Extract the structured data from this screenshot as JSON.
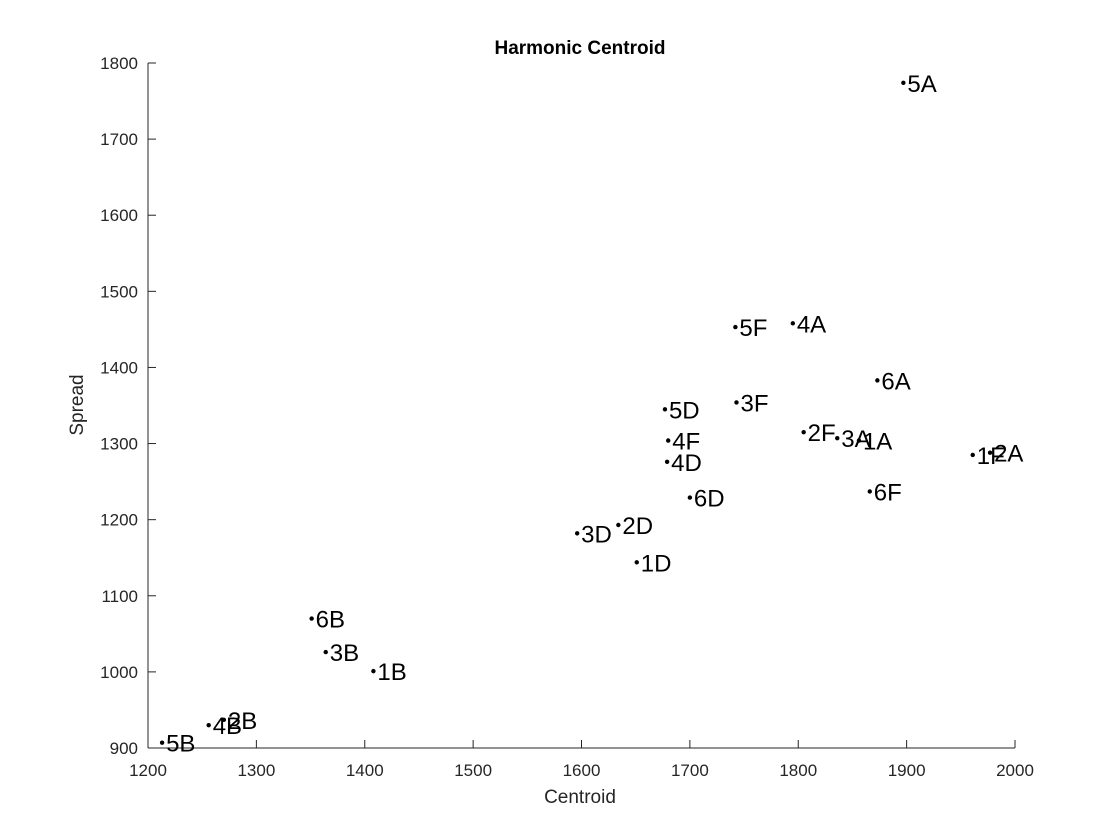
{
  "chart_data": {
    "type": "scatter",
    "title": "Harmonic Centroid",
    "xlabel": "Centroid",
    "ylabel": "Spread",
    "xlim": [
      1200,
      2000
    ],
    "ylim": [
      900,
      1800
    ],
    "xticks": [
      1200,
      1300,
      1400,
      1500,
      1600,
      1700,
      1800,
      1900,
      2000
    ],
    "yticks": [
      900,
      1000,
      1100,
      1200,
      1300,
      1400,
      1500,
      1600,
      1700,
      1800
    ],
    "xtick_labels": [
      "1200",
      "1300",
      "1400",
      "1500",
      "1600",
      "1700",
      "1800",
      "1900",
      "2000"
    ],
    "ytick_labels": [
      "900",
      "1000",
      "1100",
      "1200",
      "1300",
      "1400",
      "1500",
      "1600",
      "1700",
      "1800"
    ],
    "grid": false,
    "legend": "none",
    "points": [
      {
        "label": "5A",
        "x": 1897,
        "y": 1774
      },
      {
        "label": "4A",
        "x": 1795,
        "y": 1458
      },
      {
        "label": "5F",
        "x": 1742,
        "y": 1453
      },
      {
        "label": "6A",
        "x": 1873,
        "y": 1383
      },
      {
        "label": "3F",
        "x": 1743,
        "y": 1354
      },
      {
        "label": "5D",
        "x": 1677,
        "y": 1345
      },
      {
        "label": "2F",
        "x": 1805,
        "y": 1315
      },
      {
        "label": "3A",
        "x": 1836,
        "y": 1307
      },
      {
        "label": "1A",
        "x": 1856,
        "y": 1304
      },
      {
        "label": "4F",
        "x": 1680,
        "y": 1304
      },
      {
        "label": "1F",
        "x": 1961,
        "y": 1285
      },
      {
        "label": "2A",
        "x": 1977,
        "y": 1288
      },
      {
        "label": "4D",
        "x": 1679,
        "y": 1276
      },
      {
        "label": "6F",
        "x": 1866,
        "y": 1237
      },
      {
        "label": "6D",
        "x": 1700,
        "y": 1229
      },
      {
        "label": "2D",
        "x": 1634,
        "y": 1193
      },
      {
        "label": "3D",
        "x": 1596,
        "y": 1182
      },
      {
        "label": "1D",
        "x": 1651,
        "y": 1144
      },
      {
        "label": "6B",
        "x": 1351,
        "y": 1070
      },
      {
        "label": "3B",
        "x": 1364,
        "y": 1026
      },
      {
        "label": "1B",
        "x": 1408,
        "y": 1001
      },
      {
        "label": "2B",
        "x": 1270,
        "y": 937
      },
      {
        "label": "4B",
        "x": 1256,
        "y": 930
      },
      {
        "label": "5B",
        "x": 1213,
        "y": 907
      }
    ]
  }
}
